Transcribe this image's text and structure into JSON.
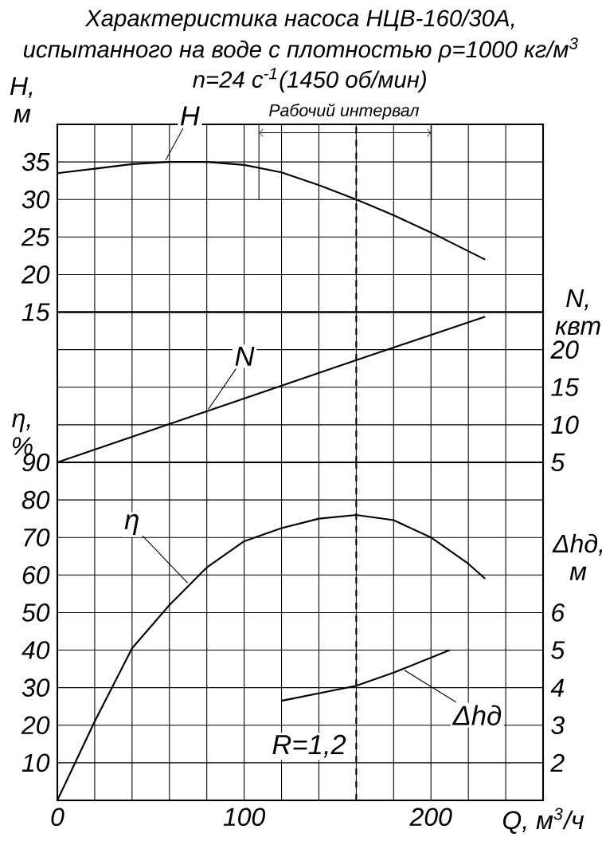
{
  "chart_data": [
    {
      "type": "line",
      "title": "Характеристика насоса НЦВ-160/30А,",
      "subtitle": "испытанного на воде с плотностью ρ=1000 кг/м$^{3}$",
      "annotations": [
        "n=24 с$^{-1}$(1450 об/мин)",
        "Рабочий интервал"
      ],
      "ylabel": "H, м",
      "xlim": [
        0,
        260
      ],
      "xticks": [
        0,
        {
          "value": 20,
          "label": null
        },
        {
          "value": 40,
          "label": null
        },
        {
          "value": 60,
          "label": null
        },
        {
          "value": 80,
          "label": null
        },
        100,
        {
          "value": 120,
          "label": null
        },
        {
          "value": 140,
          "label": null
        },
        {
          "value": 160,
          "label": null
        },
        {
          "value": 180,
          "label": null
        },
        200,
        {
          "value": 220,
          "label": null
        },
        {
          "value": 240,
          "label": null
        }
      ],
      "ylim": [
        15,
        40
      ],
      "yticks": [
        15,
        20,
        25,
        30,
        35
      ],
      "tick_labels": "y",
      "grid": true,
      "series": [
        {
          "name": "H",
          "color": "#000000",
          "x": [
            0,
            20,
            40,
            60,
            80,
            100,
            120,
            140,
            160,
            180,
            200,
            229
          ],
          "values": [
            33.5,
            34.1,
            34.7,
            35,
            35,
            34.6,
            33.6,
            31.9,
            30,
            27.9,
            25.6,
            22
          ]
        }
      ],
      "ref_lines": [
        {
          "axis": "x",
          "value": 160,
          "line_style": "dashed"
        }
      ]
    },
    {
      "type": "line",
      "ylabel": "N, квт",
      "xlim": [
        0,
        260
      ],
      "xticks": [
        0,
        {
          "value": 20,
          "label": null
        },
        {
          "value": 40,
          "label": null
        },
        {
          "value": 60,
          "label": null
        },
        {
          "value": 80,
          "label": null
        },
        100,
        {
          "value": 120,
          "label": null
        },
        {
          "value": 140,
          "label": null
        },
        {
          "value": 160,
          "label": null
        },
        {
          "value": 180,
          "label": null
        },
        200,
        {
          "value": 220,
          "label": null
        },
        {
          "value": 240,
          "label": null
        }
      ],
      "ylim": [
        5,
        25
      ],
      "yticks": [
        5,
        10,
        15,
        20
      ],
      "tick_labels": "y",
      "grid": true,
      "series": [
        {
          "name": "N",
          "color": "#000000",
          "x": [
            0,
            160,
            229
          ],
          "values": [
            5,
            18.6,
            24.4
          ]
        }
      ],
      "ref_lines": [
        {
          "axis": "x",
          "value": 160,
          "line_style": "dashed"
        }
      ]
    },
    {
      "type": "line",
      "xlabel": "Q, м$^{3}$/ч",
      "ylabel": "η, %",
      "y2label": "Δhд, м",
      "annotations": [
        "R=1,2"
      ],
      "xlim": [
        0,
        260
      ],
      "xticks": [
        0,
        {
          "value": 20,
          "label": null
        },
        {
          "value": 40,
          "label": null
        },
        {
          "value": 60,
          "label": null
        },
        {
          "value": 80,
          "label": null
        },
        100,
        {
          "value": 120,
          "label": null
        },
        {
          "value": 140,
          "label": null
        },
        {
          "value": 160,
          "label": null
        },
        {
          "value": 180,
          "label": null
        },
        200,
        {
          "value": 220,
          "label": null
        },
        {
          "value": 240,
          "label": null
        }
      ],
      "ylim": [
        0,
        90
      ],
      "yticks": [
        10,
        20,
        30,
        40,
        50,
        60,
        70,
        80,
        90
      ],
      "y2lim": [
        1,
        10
      ],
      "y2ticks": [
        2,
        3,
        4,
        5,
        6
      ],
      "grid": true,
      "series": [
        {
          "name": "η",
          "color": "#000000",
          "x": [
            0,
            10,
            20,
            40,
            60,
            80,
            100,
            120,
            140,
            160,
            180,
            200,
            220,
            229
          ],
          "values": [
            0,
            10.5,
            21,
            40.5,
            52,
            62,
            69,
            72.5,
            75,
            76,
            74.6,
            70,
            63,
            59
          ]
        },
        {
          "name": "Δhд",
          "color": "#000000",
          "axis": "y2",
          "x": [
            120,
            140,
            160,
            180,
            210
          ],
          "values": [
            3.65,
            3.85,
            4.05,
            4.4,
            5
          ]
        }
      ],
      "ref_lines": [
        {
          "axis": "x",
          "value": 160,
          "line_style": "dashed"
        }
      ]
    }
  ]
}
